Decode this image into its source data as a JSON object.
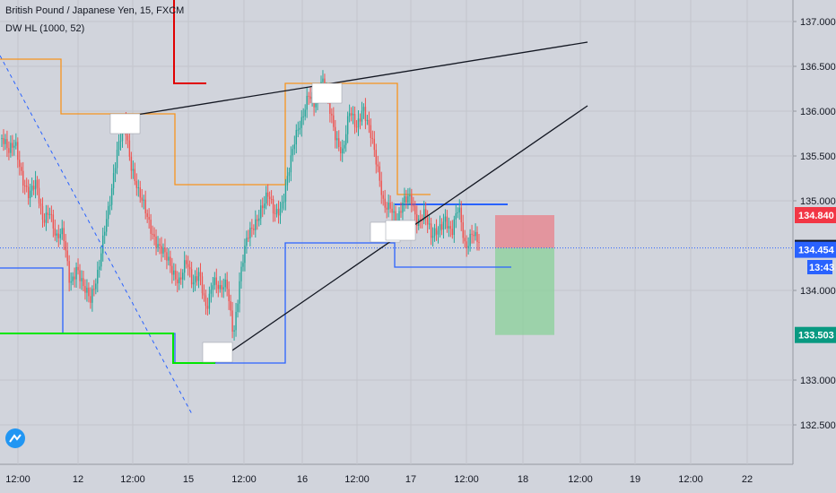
{
  "header": {
    "symbol_line": "British Pound / Japanese Yen, 15, FXCM",
    "indicator_line": "DW HL (1000, 52)"
  },
  "chart_data": {
    "type": "candlestick",
    "symbol": "British Pound / Japanese Yen",
    "timeframe": "15",
    "source": "FXCM",
    "indicator": "DW HL (1000, 52)",
    "x_ticks": [
      "12:00",
      "12",
      "12:00",
      "15",
      "12:00",
      "16",
      "12:00",
      "17",
      "12:00",
      "18",
      "12:00",
      "19",
      "12:00",
      "22"
    ],
    "y_ticks": [
      "137.000",
      "136.500",
      "136.000",
      "135.500",
      "135.000",
      "134.000",
      "133.000",
      "132.500"
    ],
    "ylim": [
      132.5,
      137.2
    ],
    "price_tags": [
      {
        "label": "134.840",
        "value": 134.84,
        "color": "#f23645"
      },
      {
        "label": "134.474",
        "value": 134.474,
        "color": "#131722"
      },
      {
        "label": "134.454",
        "value": 134.454,
        "color": "#2962ff"
      },
      {
        "label": "13:43",
        "value": 134.26,
        "color": "#2962ff"
      },
      {
        "label": "133.503",
        "value": 133.503,
        "color": "#089981"
      }
    ],
    "colors": {
      "up": "#26a69a",
      "down": "#ef5350",
      "orange_band": "#f7931e",
      "blue_band": "#2962ff",
      "green_band": "#00e600",
      "red_band": "#e00000",
      "stop_zone": "#e8808a",
      "target_zone": "#8fd19e",
      "trendline": "#131722"
    },
    "price_path": [
      135.7,
      135.5,
      135.65,
      135.3,
      135.05,
      135.15,
      134.8,
      134.95,
      134.55,
      134.6,
      134.1,
      134.3,
      134.0,
      133.85,
      134.2,
      134.7,
      135.0,
      135.55,
      135.95,
      135.4,
      135.05,
      134.9,
      134.7,
      134.5,
      134.35,
      134.2,
      134.15,
      134.35,
      134.0,
      134.2,
      133.85,
      134.1,
      133.95,
      134.1,
      133.55,
      134.15,
      134.55,
      134.75,
      134.95,
      135.05,
      134.8,
      134.95,
      135.35,
      135.65,
      135.85,
      136.25,
      136.1,
      136.3,
      136.05,
      135.75,
      135.55,
      135.95,
      135.8,
      136.1,
      135.8,
      135.35,
      134.95,
      135.0,
      134.75,
      134.95,
      135.05,
      134.8,
      134.85,
      134.55,
      134.7,
      134.85,
      134.6,
      134.9,
      134.5,
      134.7,
      134.5
    ]
  }
}
